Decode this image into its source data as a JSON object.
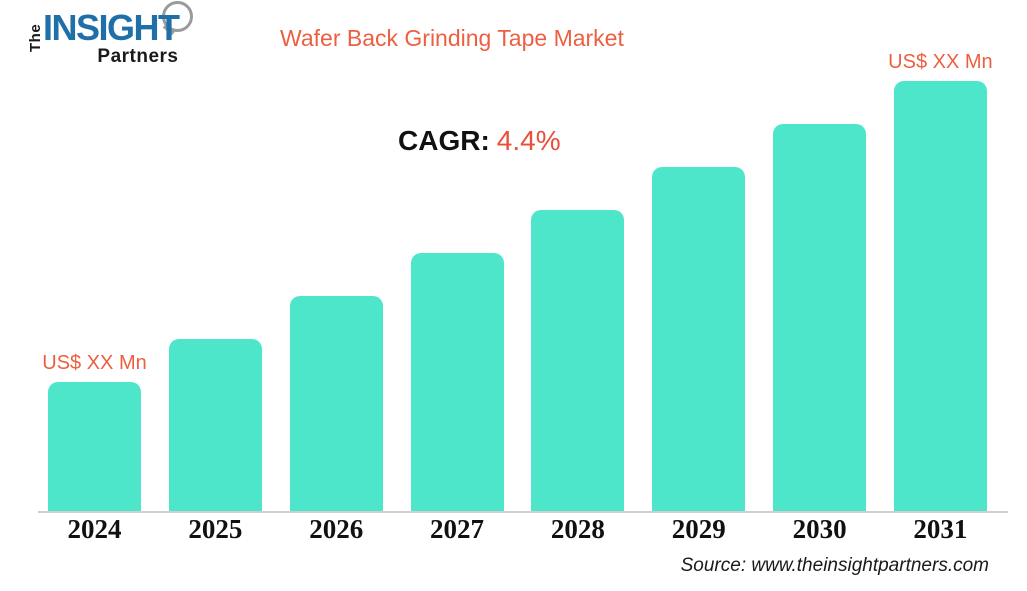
{
  "logo": {
    "the": "The",
    "insight": "INSIGHT",
    "partners": "Partners"
  },
  "title": "Wafer Back Grinding Tape Market",
  "cagr": {
    "label": "CAGR:",
    "value": "4.4%"
  },
  "source": "Source: www.theinsightpartners.com",
  "colors": {
    "accent_orange": "#ED5F41",
    "cagr_value_orange": "#E8503A",
    "bar_teal": "#4DE6CB",
    "logo_blue": "#1F6FA8",
    "axis_line_gray": "#CFCFCF",
    "text_black": "#111111"
  },
  "chart_data": {
    "type": "bar",
    "title": "Wafer Back Grinding Tape Market",
    "categories": [
      "2024",
      "2025",
      "2026",
      "2027",
      "2028",
      "2029",
      "2030",
      "2031"
    ],
    "values_relative_height_pct": [
      30,
      40,
      50,
      60,
      70,
      80,
      90,
      100
    ],
    "value_labels": [
      {
        "index": 0,
        "text": "US$ XX Mn"
      },
      {
        "index": 7,
        "text": "US$ XX Mn"
      }
    ],
    "cagr": "4.4%",
    "bar_color": "#4DE6CB",
    "xlabel": "",
    "ylabel": "",
    "grid": false,
    "legend": false,
    "y_axis_shown": false,
    "x_axis_line": true
  }
}
